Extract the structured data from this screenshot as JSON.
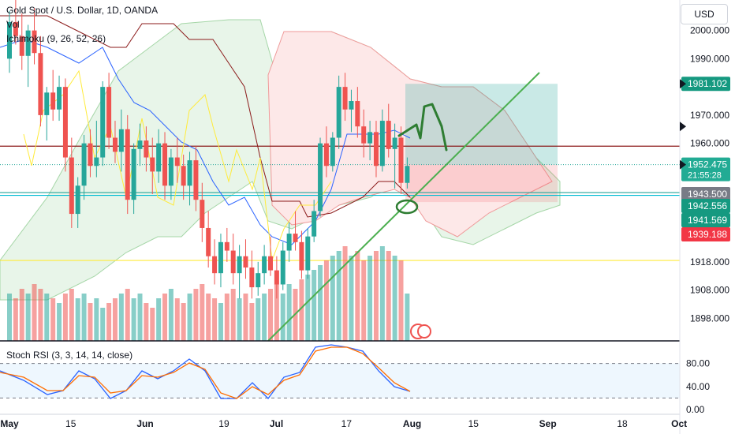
{
  "header": {
    "title": "Gold Spot / U.S. Dollar, 1D, OANDA",
    "vol_label": "Vol",
    "ichimoku_label": "Ichimoku (9, 26, 52, 26)",
    "currency": "USD"
  },
  "chart_data": {
    "type": "candlestick",
    "price_axis": {
      "ticks": [
        "2000.000",
        "1990.000",
        "1970.000",
        "1960.000",
        "1918.000",
        "1908.000",
        "1898.000"
      ]
    },
    "price_badges": [
      {
        "label": "1981.102",
        "price": 1981.102,
        "color": "#159980",
        "text": "#ffffff"
      },
      {
        "label": "1952.475",
        "price": 1952.475,
        "sub": "21:55:28",
        "color": "#22ab94",
        "text": "#ffffff"
      },
      {
        "label": "1943.500",
        "price": 1943.5,
        "color": "#787b86",
        "text": "#ffffff"
      },
      {
        "label": "1942.556",
        "price": 1942.556,
        "color": "#159980",
        "text": "#ffffff"
      },
      {
        "label": "1941.569",
        "price": 1941.569,
        "color": "#159980",
        "text": "#ffffff"
      },
      {
        "label": "1939.188",
        "price": 1939.188,
        "color": "#f23645",
        "text": "#ffffff"
      }
    ],
    "time_axis": [
      {
        "label": "May",
        "day": 0
      },
      {
        "label": "15",
        "day": 14
      },
      {
        "label": "Jun",
        "day": 31
      },
      {
        "label": "19",
        "day": 49
      },
      {
        "label": "Jul",
        "day": 61
      },
      {
        "label": "17",
        "day": 77
      },
      {
        "label": "Aug",
        "day": 92
      },
      {
        "label": "15",
        "day": 106
      },
      {
        "label": "Sep",
        "day": 123
      },
      {
        "label": "18",
        "day": 140
      },
      {
        "label": "Oct",
        "day": 153
      }
    ],
    "colors": {
      "up": "#26a69a",
      "down": "#ef5350",
      "vol_up": "#26a69a",
      "vol_down": "#ef5350"
    },
    "candles": [
      [
        1990,
        2007,
        1985,
        2003
      ],
      [
        2003,
        2012,
        1995,
        1998
      ],
      [
        1998,
        2006,
        1986,
        1991
      ],
      [
        1991,
        2002,
        1980,
        2000
      ],
      [
        2000,
        2008,
        1988,
        1992
      ],
      [
        1992,
        1998,
        1966,
        1970
      ],
      [
        1970,
        1980,
        1961,
        1978
      ],
      [
        1978,
        1986,
        1968,
        1972
      ],
      [
        1972,
        1984,
        1968,
        1980
      ],
      [
        1980,
        1983,
        1950,
        1955
      ],
      [
        1955,
        1962,
        1930,
        1935
      ],
      [
        1935,
        1948,
        1930,
        1945
      ],
      [
        1945,
        1963,
        1940,
        1960
      ],
      [
        1960,
        1965,
        1948,
        1952
      ],
      [
        1952,
        1968,
        1948,
        1955
      ],
      [
        1955,
        1982,
        1952,
        1980
      ],
      [
        1980,
        1985,
        1958,
        1962
      ],
      [
        1962,
        1968,
        1953,
        1957
      ],
      [
        1957,
        1972,
        1950,
        1965
      ],
      [
        1965,
        1970,
        1935,
        1940
      ],
      [
        1940,
        1960,
        1935,
        1958
      ],
      [
        1958,
        1967,
        1952,
        1961
      ],
      [
        1961,
        1966,
        1950,
        1955
      ],
      [
        1955,
        1962,
        1942,
        1950
      ],
      [
        1950,
        1965,
        1946,
        1960
      ],
      [
        1960,
        1964,
        1940,
        1945
      ],
      [
        1945,
        1958,
        1940,
        1955
      ],
      [
        1955,
        1962,
        1946,
        1952
      ],
      [
        1952,
        1956,
        1940,
        1945
      ],
      [
        1945,
        1957,
        1938,
        1954
      ],
      [
        1954,
        1959,
        1936,
        1940
      ],
      [
        1940,
        1946,
        1925,
        1930
      ],
      [
        1930,
        1936,
        1916,
        1920
      ],
      [
        1920,
        1926,
        1910,
        1914
      ],
      [
        1914,
        1928,
        1909,
        1925
      ],
      [
        1925,
        1930,
        1918,
        1922
      ],
      [
        1922,
        1928,
        1910,
        1914
      ],
      [
        1914,
        1924,
        1905,
        1920
      ],
      [
        1920,
        1926,
        1912,
        1916
      ],
      [
        1916,
        1922,
        1905,
        1909
      ],
      [
        1909,
        1918,
        1906,
        1914
      ],
      [
        1914,
        1924,
        1910,
        1920
      ],
      [
        1920,
        1927,
        1913,
        1915
      ],
      [
        1915,
        1920,
        1905,
        1910
      ],
      [
        1910,
        1925,
        1908,
        1922
      ],
      [
        1922,
        1932,
        1918,
        1928
      ],
      [
        1928,
        1936,
        1922,
        1925
      ],
      [
        1925,
        1929,
        1912,
        1915
      ],
      [
        1915,
        1930,
        1912,
        1927
      ],
      [
        1927,
        1940,
        1925,
        1936
      ],
      [
        1936,
        1962,
        1934,
        1960
      ],
      [
        1960,
        1966,
        1948,
        1952
      ],
      [
        1952,
        1964,
        1950,
        1962
      ],
      [
        1962,
        1984,
        1958,
        1980
      ],
      [
        1980,
        1985,
        1968,
        1972
      ],
      [
        1972,
        1979,
        1964,
        1975
      ],
      [
        1975,
        1980,
        1962,
        1966
      ],
      [
        1966,
        1972,
        1955,
        1960
      ],
      [
        1960,
        1968,
        1954,
        1964
      ],
      [
        1964,
        1968,
        1948,
        1952
      ],
      [
        1952,
        1972,
        1950,
        1968
      ],
      [
        1968,
        1974,
        1955,
        1958
      ],
      [
        1958,
        1967,
        1944,
        1962
      ],
      [
        1962,
        1966,
        1942,
        1946
      ],
      [
        1946,
        1955,
        1944,
        1952
      ]
    ],
    "volumes": [
      0.5,
      0.45,
      0.55,
      0.5,
      0.6,
      0.55,
      0.5,
      0.45,
      0.4,
      0.5,
      0.55,
      0.45,
      0.5,
      0.4,
      0.45,
      0.35,
      0.4,
      0.45,
      0.5,
      0.55,
      0.45,
      0.5,
      0.4,
      0.35,
      0.45,
      0.5,
      0.55,
      0.45,
      0.4,
      0.5,
      0.55,
      0.6,
      0.5,
      0.45,
      0.4,
      0.5,
      0.55,
      0.45,
      0.5,
      0.4,
      0.45,
      0.5,
      0.55,
      0.6,
      0.5,
      0.6,
      0.55,
      0.65,
      0.7,
      0.75,
      0.8,
      0.85,
      0.9,
      0.95,
      1.0,
      0.9,
      0.95,
      0.85,
      0.9,
      0.95,
      1.0,
      0.95,
      0.9,
      0.85,
      0.5
    ],
    "stoch_rsi": {
      "label": "Stoch RSI (3, 3, 14, 14, close)",
      "ticks": [
        "80.00",
        "40.00",
        "0.00"
      ],
      "k_color": "#2962ff",
      "d_color": "#ff6d00"
    },
    "axis_ranges": {
      "price": [
        1890,
        2008
      ]
    }
  }
}
